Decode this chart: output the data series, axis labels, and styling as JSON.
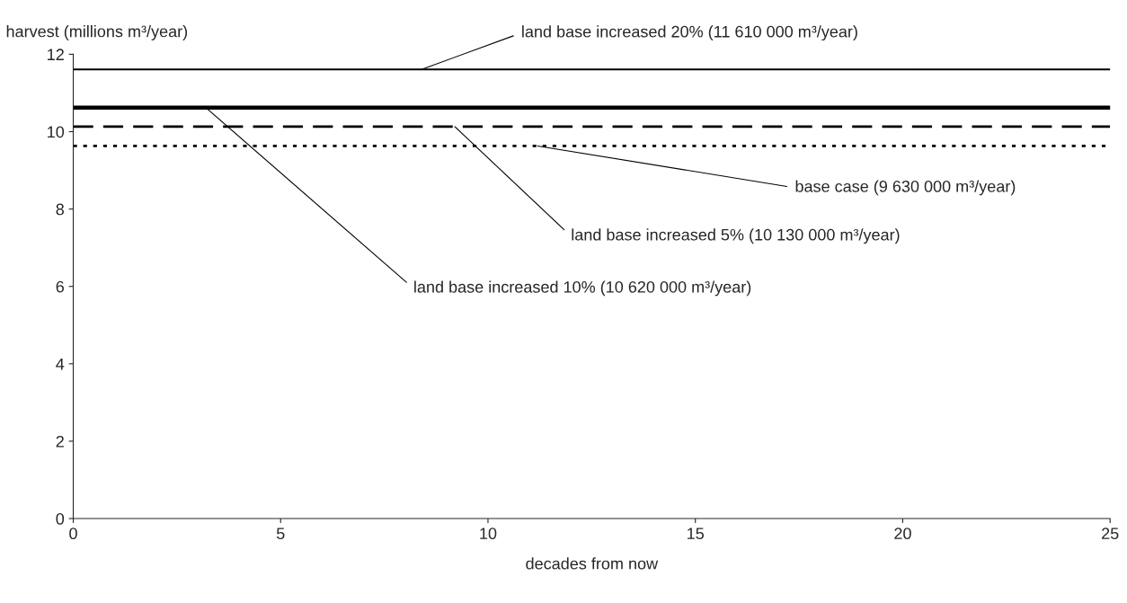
{
  "chart_data": {
    "type": "line",
    "xlabel": "decades from now",
    "ylabel": "harvest (millions m³/year)",
    "x": [
      0,
      25
    ],
    "series": [
      {
        "color": "#000000",
        "values": [
          11.61,
          11.61
        ],
        "line_style": "solid"
      },
      {
        "color": "#000000",
        "values": [
          10.62,
          10.62
        ],
        "line_style": "solid"
      },
      {
        "color": "#000000",
        "values": [
          10.13,
          10.13
        ],
        "line_style": "dashed"
      },
      {
        "color": "#000000",
        "values": [
          9.63,
          9.63
        ],
        "line_style": "dotted"
      }
    ],
    "annotations": [
      {
        "text": "land base increased 20% (11 610 000 m³/year)",
        "x": 8.4,
        "y": 11.61
      },
      {
        "text": "land base increased 10% (10 620 000 m³/year)",
        "x": 3.2,
        "y": 10.62
      },
      {
        "text": "land base increased 5% (10 130 000 m³/year)",
        "x": 9.2,
        "y": 10.13
      },
      {
        "text": "base case (9 630 000 m³/year)",
        "x": 11.2,
        "y": 9.63
      }
    ],
    "xlim": [
      0,
      25
    ],
    "xticks": [
      0,
      5,
      10,
      15,
      20,
      25
    ],
    "ylim": [
      0,
      12
    ],
    "yticks": [
      0,
      2,
      4,
      6,
      8,
      10,
      12
    ],
    "grid": false,
    "legend": false,
    "marker": "none"
  }
}
